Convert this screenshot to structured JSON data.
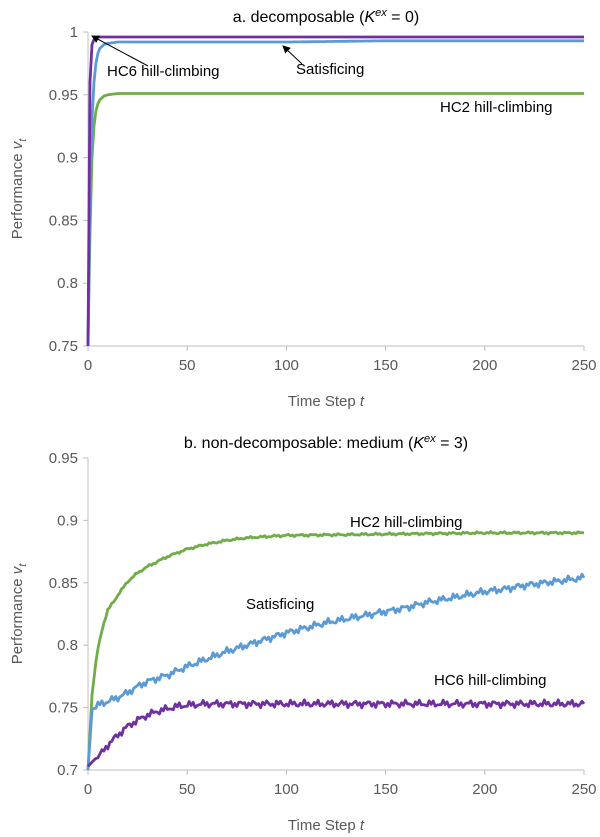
{
  "chart_data": [
    {
      "type": "line",
      "title": "a. decomposable (",
      "title_k": "K",
      "title_k_sup": "ex",
      "title_end": " = 0)",
      "xlabel": "Time Step",
      "xlabel_var": "t",
      "ylabel": "Performance",
      "ylabel_var": "v",
      "ylabel_sub": "t",
      "xlim": [
        0,
        250
      ],
      "ylim": [
        0.75,
        1
      ],
      "xticks": [
        "0",
        "50",
        "100",
        "150",
        "200",
        "250"
      ],
      "yticks": [
        "0.75",
        "0.8",
        "0.85",
        "0.9",
        "0.95",
        "1"
      ],
      "colors": {
        "hc2": "#70ad47",
        "sat": "#5b9bd5",
        "hc6": "#7030a0"
      },
      "series": [
        {
          "key": "hc2",
          "name": "HC2 hill-climbing",
          "color": "#70ad47",
          "x": [
            0,
            1,
            2,
            3,
            4,
            5,
            6,
            8,
            10,
            15,
            20,
            30,
            50,
            100,
            150,
            200,
            250
          ],
          "y": [
            0.75,
            0.84,
            0.9,
            0.925,
            0.937,
            0.943,
            0.946,
            0.949,
            0.95,
            0.951,
            0.951,
            0.951,
            0.951,
            0.951,
            0.951,
            0.951,
            0.951
          ]
        },
        {
          "key": "sat",
          "name": "Satisficing",
          "color": "#5b9bd5",
          "x": [
            0,
            1,
            2,
            3,
            4,
            5,
            6,
            8,
            10,
            15,
            20,
            50,
            100,
            150,
            200,
            250
          ],
          "y": [
            0.75,
            0.87,
            0.93,
            0.96,
            0.975,
            0.983,
            0.987,
            0.99,
            0.991,
            0.992,
            0.992,
            0.992,
            0.992,
            0.993,
            0.993,
            0.993
          ]
        },
        {
          "key": "hc6",
          "name": "HC6 hill-climbing",
          "color": "#7030a0",
          "x": [
            0,
            1,
            2,
            3,
            4,
            5,
            10,
            50,
            100,
            150,
            200,
            250
          ],
          "y": [
            0.75,
            0.96,
            0.99,
            0.994,
            0.995,
            0.996,
            0.996,
            0.996,
            0.996,
            0.996,
            0.996,
            0.996
          ]
        }
      ],
      "annotations": [
        {
          "key": "hc6",
          "text": "HC6 hill-climbing"
        },
        {
          "key": "sat",
          "text": "Satisficing"
        },
        {
          "key": "hc2",
          "text": "HC2 hill-climbing"
        }
      ]
    },
    {
      "type": "line",
      "title": "b. non-decomposable: medium (",
      "title_k": "K",
      "title_k_sup": "ex",
      "title_end": " = 3)",
      "xlabel": "Time Step",
      "xlabel_var": "t",
      "ylabel": "Performance",
      "ylabel_var": "v",
      "ylabel_sub": "t",
      "xlim": [
        0,
        250
      ],
      "ylim": [
        0.7,
        0.95
      ],
      "xticks": [
        "0",
        "50",
        "100",
        "150",
        "200",
        "250"
      ],
      "yticks": [
        "0.7",
        "0.75",
        "0.8",
        "0.85",
        "0.9",
        "0.95"
      ],
      "series": [
        {
          "key": "hc2",
          "name": "HC2 hill-climbing",
          "color": "#70ad47",
          "x": [
            0,
            2,
            4,
            6,
            8,
            10,
            15,
            20,
            25,
            30,
            40,
            50,
            60,
            70,
            80,
            100,
            150,
            200,
            250
          ],
          "y": [
            0.7,
            0.76,
            0.787,
            0.805,
            0.818,
            0.828,
            0.84,
            0.851,
            0.858,
            0.863,
            0.871,
            0.877,
            0.881,
            0.884,
            0.886,
            0.888,
            0.889,
            0.89,
            0.89
          ]
        },
        {
          "key": "sat",
          "name": "Satisficing",
          "color": "#5b9bd5",
          "x": [
            0,
            2,
            5,
            10,
            15,
            20,
            25,
            30,
            40,
            50,
            60,
            70,
            80,
            90,
            100,
            110,
            120,
            130,
            140,
            150,
            160,
            170,
            180,
            190,
            200,
            210,
            220,
            230,
            240,
            250
          ],
          "y": [
            0.7,
            0.748,
            0.752,
            0.755,
            0.758,
            0.762,
            0.767,
            0.771,
            0.776,
            0.783,
            0.789,
            0.795,
            0.8,
            0.805,
            0.81,
            0.814,
            0.818,
            0.821,
            0.824,
            0.827,
            0.83,
            0.834,
            0.837,
            0.84,
            0.843,
            0.845,
            0.848,
            0.85,
            0.852,
            0.854
          ]
        },
        {
          "key": "hc6",
          "name": "HC6 hill-climbing",
          "color": "#7030a0",
          "x": [
            0,
            3,
            6,
            10,
            15,
            20,
            25,
            30,
            35,
            40,
            45,
            50,
            60,
            80,
            100,
            150,
            200,
            250
          ],
          "y": [
            0.703,
            0.708,
            0.712,
            0.72,
            0.728,
            0.735,
            0.74,
            0.744,
            0.747,
            0.749,
            0.751,
            0.752,
            0.753,
            0.753,
            0.753,
            0.753,
            0.753,
            0.753
          ]
        }
      ],
      "annotations": [
        {
          "key": "hc2",
          "text": "HC2 hill-climbing"
        },
        {
          "key": "sat",
          "text": "Satisficing"
        },
        {
          "key": "hc6",
          "text": "HC6 hill-climbing"
        }
      ]
    }
  ]
}
